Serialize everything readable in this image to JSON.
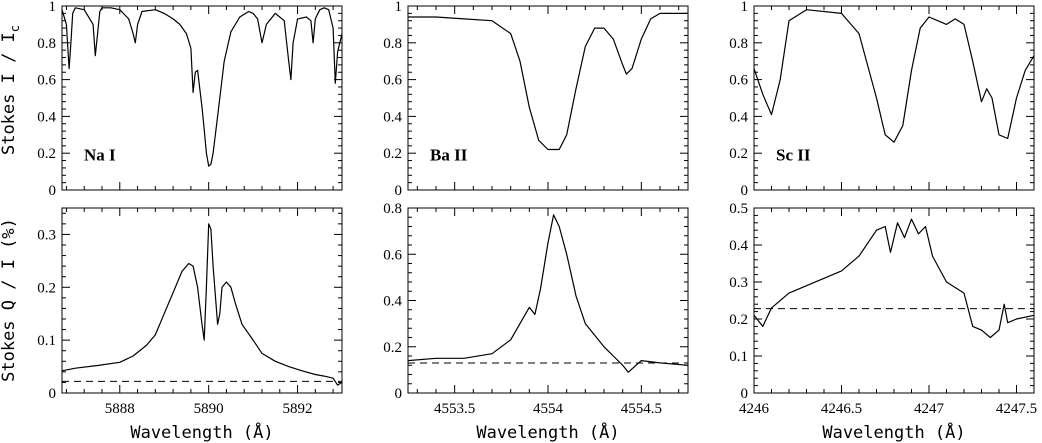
{
  "figure": {
    "ylabel_top": "Stokes I / I",
    "ylabel_top_sub": "c",
    "ylabel_bottom": "Stokes  Q / I (%)",
    "xlabel": "Wavelength  (Å)"
  },
  "chart_data": [
    {
      "type": "line",
      "panel": "top",
      "column": 0,
      "annotation": "Na I",
      "xlim": [
        5886.7,
        5893.0
      ],
      "ylim": [
        0,
        1
      ],
      "xticks": [
        5888,
        5890,
        5892
      ],
      "xtick_labels": [],
      "yticks": [
        0,
        0.2,
        0.4,
        0.6,
        0.8,
        1
      ],
      "ytick_labels": [
        "0",
        "0.2",
        "0.4",
        "0.6",
        "0.8",
        "1"
      ],
      "series": [
        {
          "x": [
            5886.7,
            5886.8,
            5886.86,
            5886.9,
            5886.94,
            5887.0,
            5887.2,
            5887.4,
            5887.45,
            5887.5,
            5887.55,
            5887.6,
            5887.8,
            5888.0,
            5888.2,
            5888.3,
            5888.35,
            5888.4,
            5888.5,
            5888.8,
            5889.0,
            5889.2,
            5889.35,
            5889.5,
            5889.6,
            5889.65,
            5889.7,
            5889.75,
            5889.8,
            5889.85,
            5889.9,
            5889.95,
            5890.0,
            5890.05,
            5890.1,
            5890.2,
            5890.35,
            5890.5,
            5890.7,
            5890.9,
            5891.0,
            5891.1,
            5891.2,
            5891.3,
            5891.5,
            5891.7,
            5891.8,
            5891.85,
            5891.9,
            5892.0,
            5892.2,
            5892.3,
            5892.35,
            5892.4,
            5892.5,
            5892.6,
            5892.7,
            5892.8,
            5892.85,
            5892.9,
            5893.0
          ],
          "y": [
            0.98,
            0.9,
            0.66,
            0.8,
            0.96,
            0.99,
            0.98,
            0.9,
            0.73,
            0.85,
            0.97,
            0.99,
            0.99,
            0.98,
            0.93,
            0.85,
            0.8,
            0.9,
            0.97,
            0.98,
            0.96,
            0.93,
            0.9,
            0.85,
            0.77,
            0.53,
            0.64,
            0.65,
            0.55,
            0.45,
            0.33,
            0.2,
            0.13,
            0.14,
            0.2,
            0.4,
            0.7,
            0.86,
            0.94,
            0.97,
            0.96,
            0.93,
            0.8,
            0.9,
            0.96,
            0.92,
            0.7,
            0.6,
            0.8,
            0.93,
            0.94,
            0.92,
            0.8,
            0.93,
            0.98,
            0.99,
            0.98,
            0.88,
            0.58,
            0.75,
            0.85
          ]
        }
      ]
    },
    {
      "type": "line",
      "panel": "bottom",
      "column": 0,
      "xlim": [
        5886.7,
        5893.0
      ],
      "ylim": [
        0,
        0.35
      ],
      "xticks": [
        5888,
        5890,
        5892
      ],
      "xtick_labels": [
        "5888",
        "5890",
        "5892"
      ],
      "yticks": [
        0,
        0.1,
        0.2,
        0.3
      ],
      "ytick_labels": [
        "0",
        "0.1",
        "0.2",
        "0.3"
      ],
      "reference_level": 0.022,
      "series": [
        {
          "x": [
            5886.7,
            5887.0,
            5887.5,
            5888.0,
            5888.3,
            5888.6,
            5888.8,
            5889.0,
            5889.2,
            5889.4,
            5889.55,
            5889.65,
            5889.75,
            5889.85,
            5889.9,
            5889.95,
            5890.0,
            5890.05,
            5890.1,
            5890.2,
            5890.25,
            5890.3,
            5890.4,
            5890.5,
            5890.6,
            5890.75,
            5891.0,
            5891.2,
            5891.5,
            5891.8,
            5892.1,
            5892.4,
            5892.6,
            5892.8,
            5892.9,
            5893.0
          ],
          "y": [
            0.042,
            0.047,
            0.052,
            0.058,
            0.07,
            0.09,
            0.11,
            0.15,
            0.19,
            0.23,
            0.245,
            0.24,
            0.2,
            0.13,
            0.1,
            0.2,
            0.32,
            0.31,
            0.24,
            0.13,
            0.15,
            0.2,
            0.21,
            0.2,
            0.17,
            0.13,
            0.1,
            0.075,
            0.06,
            0.05,
            0.042,
            0.035,
            0.032,
            0.028,
            0.015,
            0.02
          ]
        }
      ]
    },
    {
      "type": "line",
      "panel": "top",
      "column": 1,
      "annotation": "Ba II",
      "xlim": [
        4553.25,
        4554.75
      ],
      "ylim": [
        0,
        1
      ],
      "xticks": [
        4553.5,
        4554,
        4554.5
      ],
      "xtick_labels": [],
      "yticks": [
        0,
        0.2,
        0.4,
        0.6,
        0.8,
        1
      ],
      "ytick_labels": [
        "0",
        "0.2",
        "0.4",
        "0.6",
        "0.8",
        "1"
      ],
      "series": [
        {
          "x": [
            4553.25,
            4553.4,
            4553.55,
            4553.7,
            4553.8,
            4553.85,
            4553.9,
            4553.95,
            4554.0,
            4554.03,
            4554.06,
            4554.1,
            4554.15,
            4554.2,
            4554.25,
            4554.3,
            4554.35,
            4554.4,
            4554.42,
            4554.45,
            4554.5,
            4554.55,
            4554.6,
            4554.75
          ],
          "y": [
            0.94,
            0.94,
            0.93,
            0.92,
            0.85,
            0.7,
            0.45,
            0.27,
            0.22,
            0.22,
            0.22,
            0.3,
            0.55,
            0.78,
            0.88,
            0.88,
            0.82,
            0.68,
            0.63,
            0.66,
            0.82,
            0.93,
            0.96,
            0.96
          ]
        }
      ]
    },
    {
      "type": "line",
      "panel": "bottom",
      "column": 1,
      "xlim": [
        4553.25,
        4554.75
      ],
      "ylim": [
        0,
        0.8
      ],
      "xticks": [
        4553.5,
        4554,
        4554.5
      ],
      "xtick_labels": [
        "4553.5",
        "4554",
        "4554.5"
      ],
      "yticks": [
        0,
        0.2,
        0.4,
        0.6,
        0.8
      ],
      "ytick_labels": [
        "0",
        "0.2",
        "0.4",
        "0.6",
        "0.8"
      ],
      "reference_level": 0.13,
      "series": [
        {
          "x": [
            4553.25,
            4553.4,
            4553.55,
            4553.7,
            4553.8,
            4553.85,
            4553.9,
            4553.93,
            4553.96,
            4554.0,
            4554.03,
            4554.06,
            4554.1,
            4554.15,
            4554.2,
            4554.25,
            4554.3,
            4554.35,
            4554.4,
            4554.43,
            4554.5,
            4554.6,
            4554.75
          ],
          "y": [
            0.14,
            0.15,
            0.15,
            0.17,
            0.23,
            0.3,
            0.37,
            0.34,
            0.45,
            0.65,
            0.77,
            0.72,
            0.6,
            0.42,
            0.3,
            0.25,
            0.2,
            0.16,
            0.12,
            0.09,
            0.14,
            0.13,
            0.12
          ]
        }
      ]
    },
    {
      "type": "line",
      "panel": "top",
      "column": 2,
      "annotation": "Sc II",
      "xlim": [
        4246,
        4247.6
      ],
      "ylim": [
        0,
        1
      ],
      "xticks": [
        4246,
        4246.5,
        4247,
        4247.5
      ],
      "xtick_labels": [],
      "yticks": [
        0,
        0.2,
        0.4,
        0.6,
        0.8,
        1
      ],
      "ytick_labels": [
        "0",
        "0.2",
        "0.4",
        "0.6",
        "0.8",
        "1"
      ],
      "series": [
        {
          "x": [
            4246.0,
            4246.05,
            4246.1,
            4246.15,
            4246.2,
            4246.3,
            4246.5,
            4246.6,
            4246.7,
            4246.75,
            4246.8,
            4246.85,
            4246.9,
            4246.95,
            4247.0,
            4247.05,
            4247.1,
            4247.15,
            4247.2,
            4247.25,
            4247.3,
            4247.33,
            4247.36,
            4247.4,
            4247.45,
            4247.5,
            4247.55,
            4247.6
          ],
          "y": [
            0.66,
            0.52,
            0.41,
            0.6,
            0.92,
            0.98,
            0.96,
            0.85,
            0.5,
            0.3,
            0.26,
            0.35,
            0.65,
            0.88,
            0.94,
            0.92,
            0.9,
            0.93,
            0.9,
            0.7,
            0.48,
            0.55,
            0.5,
            0.3,
            0.28,
            0.5,
            0.65,
            0.73
          ]
        }
      ]
    },
    {
      "type": "line",
      "panel": "bottom",
      "column": 2,
      "xlim": [
        4246,
        4247.6
      ],
      "ylim": [
        0,
        0.5
      ],
      "xticks": [
        4246,
        4246.5,
        4247,
        4247.5
      ],
      "xtick_labels": [
        "4246",
        "4246.5",
        "4247",
        "4247.5"
      ],
      "yticks": [
        0,
        0.1,
        0.2,
        0.3,
        0.4,
        0.5
      ],
      "ytick_labels": [
        "0",
        "0.1",
        "0.2",
        "0.3",
        "0.4",
        "0.5"
      ],
      "reference_level": 0.228,
      "series": [
        {
          "x": [
            4246.0,
            4246.05,
            4246.1,
            4246.2,
            4246.3,
            4246.4,
            4246.5,
            4246.6,
            4246.7,
            4246.75,
            4246.78,
            4246.82,
            4246.86,
            4246.9,
            4246.94,
            4246.98,
            4247.02,
            4247.1,
            4247.2,
            4247.25,
            4247.3,
            4247.35,
            4247.4,
            4247.43,
            4247.45,
            4247.5,
            4247.6
          ],
          "y": [
            0.21,
            0.18,
            0.23,
            0.27,
            0.29,
            0.31,
            0.33,
            0.37,
            0.44,
            0.45,
            0.38,
            0.46,
            0.42,
            0.47,
            0.43,
            0.45,
            0.37,
            0.3,
            0.27,
            0.18,
            0.17,
            0.15,
            0.17,
            0.24,
            0.19,
            0.2,
            0.21
          ]
        }
      ]
    }
  ]
}
